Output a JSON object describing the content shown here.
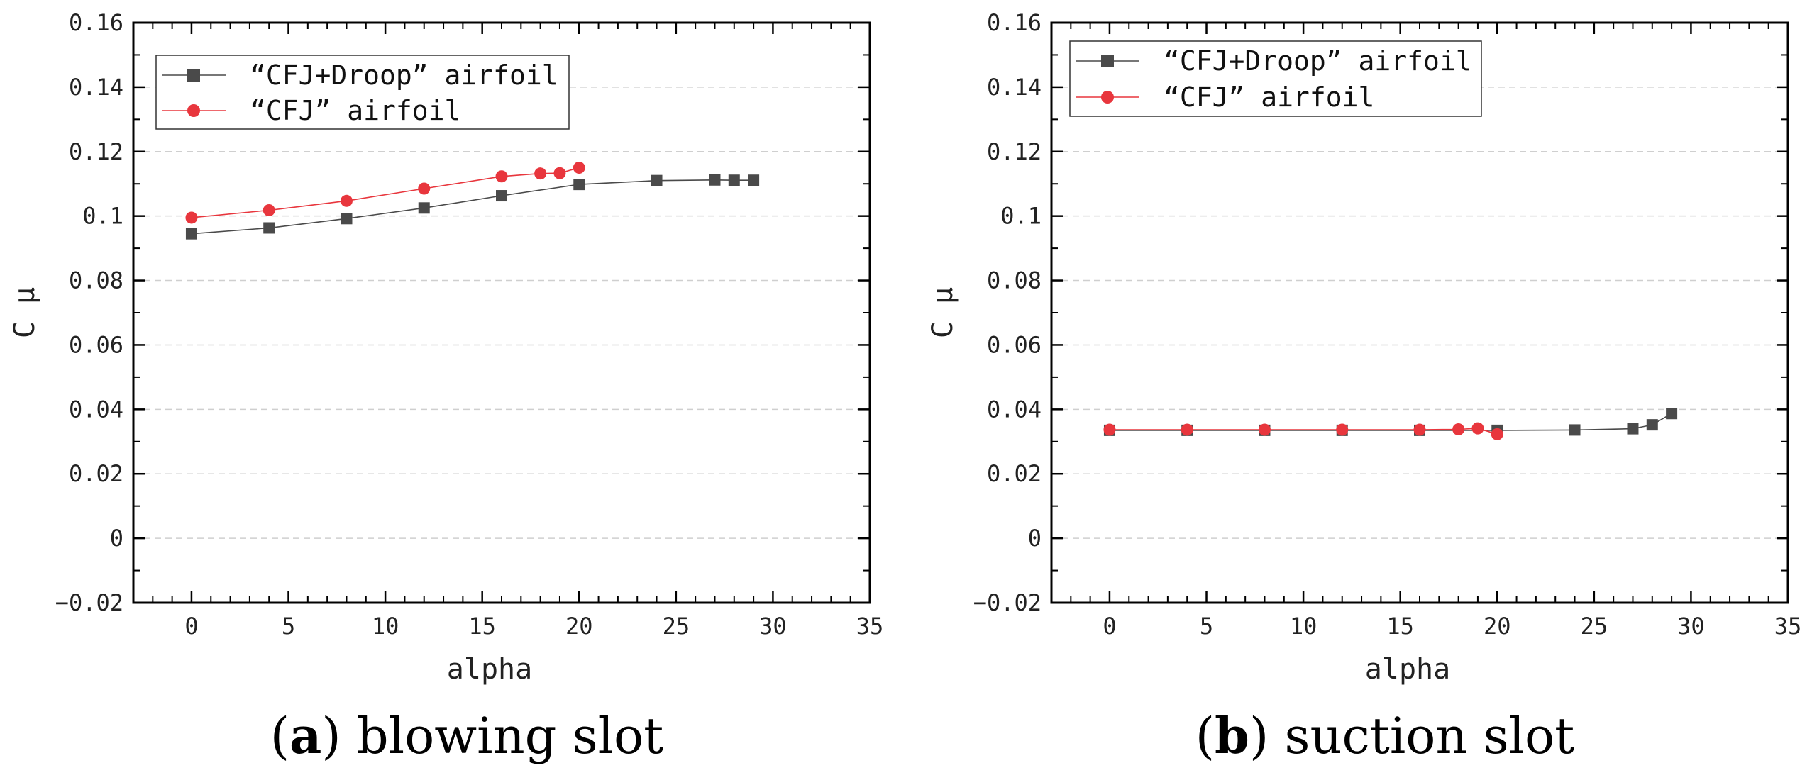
{
  "chart_data": [
    {
      "type": "line",
      "caption_letter": "a",
      "caption_text": "blowing slot",
      "xlabel": "alpha",
      "ylabel": "C μ",
      "xlim": [
        -3,
        35
      ],
      "ylim": [
        -0.02,
        0.16
      ],
      "xticks": [
        0,
        5,
        10,
        15,
        20,
        25,
        30,
        35
      ],
      "xtick_labels": [
        "0",
        "5",
        "10",
        "15",
        "20",
        "25",
        "30",
        "35"
      ],
      "yticks": [
        -0.02,
        0,
        0.02,
        0.04,
        0.06,
        0.08,
        0.1,
        0.12,
        0.14,
        0.16
      ],
      "ytick_labels": [
        "−0.02",
        "0",
        "0.02",
        "0.04",
        "0.06",
        "0.08",
        "0.1",
        "0.12",
        "0.14",
        "0.16"
      ],
      "grid": "horizontal dashed",
      "legend_position": "top-left",
      "series": [
        {
          "name": "“CFJ+Droop” airfoil",
          "marker": "square",
          "color": "#4a4a4a",
          "x": [
            0,
            4,
            8,
            12,
            16,
            20,
            24,
            27,
            28,
            29
          ],
          "y": [
            0.0945,
            0.0963,
            0.0992,
            0.1025,
            0.1063,
            0.1098,
            0.111,
            0.1112,
            0.1111,
            0.1111
          ]
        },
        {
          "name": "“CFJ” airfoil",
          "marker": "circle",
          "color": "#e8363d",
          "x": [
            0,
            4,
            8,
            12,
            16,
            18,
            19,
            20
          ],
          "y": [
            0.0995,
            0.1018,
            0.1047,
            0.1085,
            0.1123,
            0.1132,
            0.1133,
            0.115
          ]
        }
      ]
    },
    {
      "type": "line",
      "caption_letter": "b",
      "caption_text": "suction slot",
      "xlabel": "alpha",
      "ylabel": "C μ",
      "xlim": [
        -3,
        35
      ],
      "ylim": [
        -0.02,
        0.16
      ],
      "xticks": [
        0,
        5,
        10,
        15,
        20,
        25,
        30,
        35
      ],
      "xtick_labels": [
        "0",
        "5",
        "10",
        "15",
        "20",
        "25",
        "30",
        "35"
      ],
      "yticks": [
        -0.02,
        0,
        0.02,
        0.04,
        0.06,
        0.08,
        0.1,
        0.12,
        0.14,
        0.16
      ],
      "ytick_labels": [
        "−0.02",
        "0",
        "0.02",
        "0.04",
        "0.06",
        "0.08",
        "0.1",
        "0.12",
        "0.14",
        "0.16"
      ],
      "grid": "horizontal dashed",
      "legend_position": "top-left",
      "series": [
        {
          "name": "“CFJ+Droop” airfoil",
          "marker": "square",
          "color": "#4a4a4a",
          "x": [
            0,
            4,
            8,
            12,
            16,
            20,
            24,
            27,
            28,
            29
          ],
          "y": [
            0.0335,
            0.0335,
            0.0335,
            0.0335,
            0.0335,
            0.0335,
            0.0336,
            0.034,
            0.0352,
            0.0387
          ]
        },
        {
          "name": "“CFJ” airfoil",
          "marker": "circle",
          "color": "#e8363d",
          "x": [
            0,
            4,
            8,
            12,
            16,
            18,
            19,
            20
          ],
          "y": [
            0.0337,
            0.0337,
            0.0337,
            0.0337,
            0.0337,
            0.0338,
            0.0341,
            0.0323
          ]
        }
      ]
    }
  ]
}
